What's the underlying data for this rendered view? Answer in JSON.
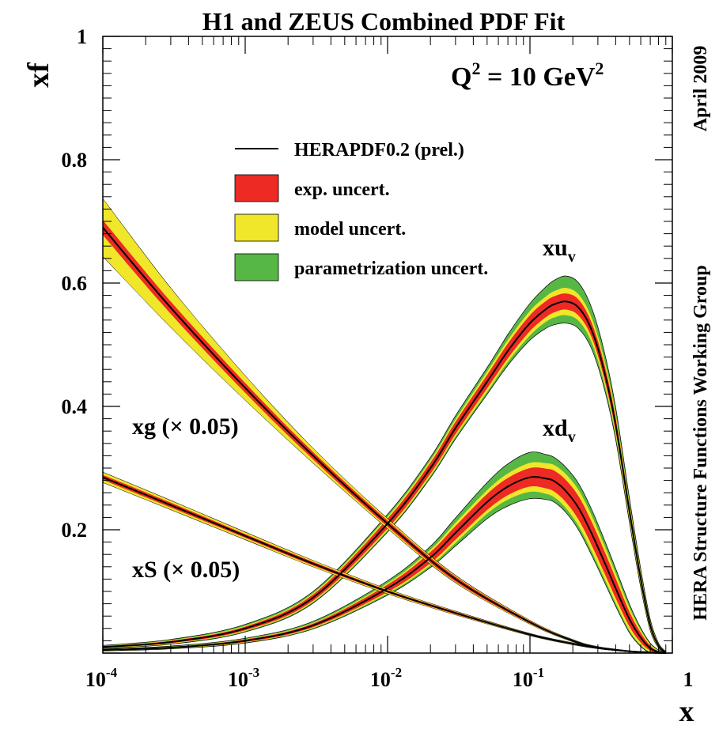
{
  "chart_data": {
    "type": "line",
    "title": "H1 and ZEUS Combined PDF Fit",
    "ylabel": "xf",
    "xlabel": "x",
    "x_scale": "log",
    "xlim": [
      0.0001,
      1
    ],
    "ylim": [
      0,
      1
    ],
    "x_ticks": [
      {
        "base": "10",
        "exp": "-4",
        "value": 0.0001
      },
      {
        "base": "10",
        "exp": "-3",
        "value": 0.001
      },
      {
        "base": "10",
        "exp": "-2",
        "value": 0.01
      },
      {
        "base": "10",
        "exp": "-1",
        "value": 0.1
      },
      {
        "base": "1",
        "exp": "",
        "value": 1
      }
    ],
    "y_ticks": [
      {
        "label": "1",
        "value": 1.0
      },
      {
        "label": "0.8",
        "value": 0.8
      },
      {
        "label": "0.6",
        "value": 0.6
      },
      {
        "label": "0.4",
        "value": 0.4
      },
      {
        "label": "0.2",
        "value": 0.2
      }
    ],
    "grid": false,
    "legend_position": "upper-left",
    "annotations": {
      "q2": {
        "base": "Q",
        "sup1": "2",
        "mid": " = 10 GeV",
        "sup2": "2"
      },
      "right_top": "April 2009",
      "right_bottom": "HERA Structure Functions Working Group"
    },
    "legend": [
      {
        "label": "HERAPDF0.2 (prel.)",
        "kind": "line",
        "color": "#000000"
      },
      {
        "label": "exp. uncert.",
        "kind": "band",
        "color": "#ee2a24"
      },
      {
        "label": "model uncert.",
        "kind": "band",
        "color": "#f0e62a"
      },
      {
        "label": "parametrization uncert.",
        "kind": "band",
        "color": "#56b745"
      }
    ],
    "colors": {
      "exp": "#ee2a24",
      "model": "#f0e62a",
      "param": "#56b745",
      "central": "#000000"
    },
    "series": [
      {
        "name": "xu_v",
        "label": {
          "base": "xu",
          "sub": "v"
        },
        "x": [
          0.0001,
          0.0003,
          0.001,
          0.003,
          0.01,
          0.02,
          0.03,
          0.05,
          0.07,
          0.1,
          0.13,
          0.15,
          0.18,
          0.22,
          0.27,
          0.33,
          0.4,
          0.5,
          0.6,
          0.7,
          0.8,
          0.9
        ],
        "y": [
          0.01,
          0.018,
          0.04,
          0.09,
          0.21,
          0.3,
          0.365,
          0.44,
          0.49,
          0.535,
          0.558,
          0.566,
          0.57,
          0.56,
          0.525,
          0.46,
          0.37,
          0.23,
          0.12,
          0.045,
          0.012,
          0.001
        ],
        "exp_unc": [
          0.001,
          0.002,
          0.003,
          0.005,
          0.008,
          0.009,
          0.01,
          0.011,
          0.012,
          0.013,
          0.013,
          0.013,
          0.013,
          0.013,
          0.012,
          0.012,
          0.011,
          0.009,
          0.007,
          0.004,
          0.002,
          0.001
        ],
        "model_unc": [
          0.001,
          0.002,
          0.003,
          0.005,
          0.008,
          0.009,
          0.01,
          0.012,
          0.013,
          0.015,
          0.016,
          0.017,
          0.018,
          0.017,
          0.016,
          0.015,
          0.013,
          0.01,
          0.008,
          0.005,
          0.002,
          0.001
        ],
        "param_unc": [
          0.002,
          0.003,
          0.005,
          0.007,
          0.01,
          0.012,
          0.014,
          0.016,
          0.02,
          0.025,
          0.03,
          0.033,
          0.035,
          0.034,
          0.03,
          0.026,
          0.022,
          0.016,
          0.012,
          0.007,
          0.003,
          0.001
        ]
      },
      {
        "name": "xd_v",
        "label": {
          "base": "xd",
          "sub": "v"
        },
        "x": [
          0.0001,
          0.0003,
          0.001,
          0.003,
          0.01,
          0.02,
          0.03,
          0.05,
          0.07,
          0.1,
          0.13,
          0.15,
          0.18,
          0.22,
          0.27,
          0.33,
          0.4,
          0.5,
          0.6,
          0.7,
          0.8,
          0.9
        ],
        "y": [
          0.005,
          0.009,
          0.02,
          0.045,
          0.105,
          0.155,
          0.195,
          0.245,
          0.27,
          0.285,
          0.283,
          0.278,
          0.262,
          0.235,
          0.195,
          0.15,
          0.105,
          0.055,
          0.025,
          0.008,
          0.002,
          0.0002
        ],
        "exp_unc": [
          0.001,
          0.001,
          0.002,
          0.003,
          0.006,
          0.009,
          0.011,
          0.013,
          0.014,
          0.015,
          0.016,
          0.017,
          0.018,
          0.019,
          0.019,
          0.018,
          0.016,
          0.012,
          0.008,
          0.004,
          0.001,
          0.0002
        ],
        "model_unc": [
          0.001,
          0.001,
          0.002,
          0.003,
          0.006,
          0.009,
          0.012,
          0.014,
          0.016,
          0.018,
          0.019,
          0.02,
          0.021,
          0.022,
          0.022,
          0.02,
          0.018,
          0.014,
          0.009,
          0.005,
          0.002,
          0.0003
        ],
        "param_unc": [
          0.001,
          0.002,
          0.003,
          0.005,
          0.009,
          0.013,
          0.018,
          0.025,
          0.03,
          0.033,
          0.03,
          0.028,
          0.027,
          0.027,
          0.026,
          0.024,
          0.021,
          0.016,
          0.01,
          0.005,
          0.002,
          0.0004
        ]
      },
      {
        "name": "xg (× 0.05)",
        "label": {
          "base": "xg (× 0.05)",
          "sub": ""
        },
        "x": [
          0.0001,
          0.0003,
          0.001,
          0.003,
          0.01,
          0.03,
          0.1,
          0.2,
          0.3,
          0.5,
          0.7,
          0.9
        ],
        "y": [
          0.69,
          0.56,
          0.43,
          0.32,
          0.21,
          0.12,
          0.05,
          0.02,
          0.009,
          0.003,
          0.001,
          0.0001
        ],
        "exp_unc": [
          0.012,
          0.01,
          0.008,
          0.006,
          0.005,
          0.004,
          0.002,
          0.001,
          0.001,
          0.0005,
          0.0002,
          0.0001
        ],
        "model_unc": [
          0.045,
          0.03,
          0.018,
          0.01,
          0.006,
          0.004,
          0.002,
          0.001,
          0.001,
          0.0005,
          0.0002,
          0.0001
        ],
        "param_unc": [
          0.003,
          0.003,
          0.002,
          0.002,
          0.002,
          0.002,
          0.001,
          0.001,
          0.0005,
          0.0003,
          0.0001,
          0.0001
        ]
      },
      {
        "name": "xS (× 0.05)",
        "label": {
          "base": "xS (× 0.05)",
          "sub": ""
        },
        "x": [
          0.0001,
          0.0003,
          0.001,
          0.003,
          0.01,
          0.03,
          0.1,
          0.2,
          0.3,
          0.5,
          0.7,
          0.9
        ],
        "y": [
          0.285,
          0.24,
          0.19,
          0.145,
          0.1,
          0.065,
          0.03,
          0.015,
          0.008,
          0.003,
          0.001,
          0.0001
        ],
        "exp_unc": [
          0.004,
          0.004,
          0.003,
          0.003,
          0.002,
          0.002,
          0.001,
          0.001,
          0.0005,
          0.0003,
          0.0001,
          0.0001
        ],
        "model_unc": [
          0.007,
          0.006,
          0.005,
          0.004,
          0.003,
          0.002,
          0.001,
          0.001,
          0.0005,
          0.0003,
          0.0001,
          0.0001
        ],
        "param_unc": [
          0.002,
          0.002,
          0.002,
          0.001,
          0.001,
          0.001,
          0.001,
          0.0005,
          0.0003,
          0.0002,
          0.0001,
          0.0001
        ]
      }
    ]
  }
}
